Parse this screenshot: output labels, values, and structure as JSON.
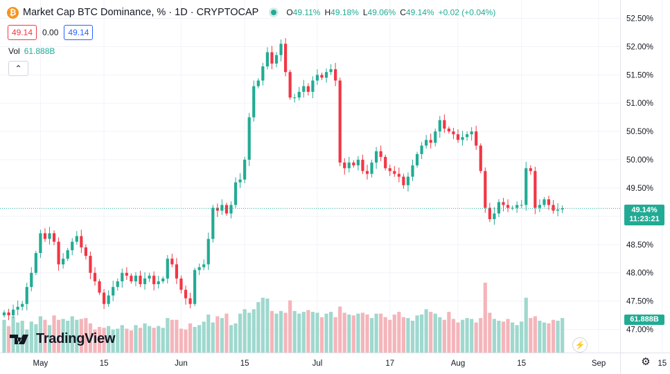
{
  "header": {
    "title": "Market Cap BTC Dominance, % · 1D · CRYPTOCAP",
    "btc_glyph": "₿",
    "ohlc": {
      "o_key": "O",
      "o": "49.11%",
      "h_key": "H",
      "h": "49.18%",
      "l_key": "L",
      "l": "49.06%",
      "c_key": "C",
      "c": "49.14%",
      "change": "+0.02 (+0.04%)"
    }
  },
  "quote": {
    "sell": "49.14",
    "spread": "0.00",
    "buy": "49.14"
  },
  "volume_legend": {
    "label": "Vol",
    "value": "61.888B"
  },
  "collapse_glyph": "⌃",
  "brand": {
    "name": "TradingView"
  },
  "price_label": {
    "price": "49.14%",
    "countdown": "11:23:21"
  },
  "volume_label": "61.888B",
  "colors": {
    "up": "#22ab94",
    "down": "#f23645",
    "up_vol": "#9fd8ce",
    "down_vol": "#f4b5ba",
    "grid": "#f0f3fa",
    "text": "#131722"
  },
  "chart_data": {
    "type": "candlestick",
    "symbol": "CRYPTOCAP:BTC.D",
    "interval": "1D",
    "ylim": [
      46.9,
      52.6
    ],
    "y_ticks": [
      "52.50%",
      "52.00%",
      "51.50%",
      "51.00%",
      "50.50%",
      "50.00%",
      "49.50%",
      "49.00%",
      "48.50%",
      "48.00%",
      "47.50%",
      "47.00%"
    ],
    "y_tick_values": [
      52.5,
      52.0,
      51.5,
      51.0,
      50.5,
      50.0,
      49.5,
      49.0,
      48.5,
      48.0,
      47.5,
      47.0
    ],
    "x_ticks": [
      "May",
      "15",
      "Jun",
      "15",
      "Jul",
      "17",
      "Aug",
      "15",
      "Sep",
      "15"
    ],
    "x_tick_day_index": [
      8,
      22,
      39,
      53,
      69,
      85,
      100,
      114,
      131,
      145
    ],
    "closes": [
      47.3,
      47.25,
      47.35,
      47.4,
      47.45,
      47.75,
      48.0,
      48.35,
      48.7,
      48.6,
      48.7,
      48.55,
      48.15,
      48.25,
      48.4,
      48.55,
      48.65,
      48.45,
      48.3,
      48.0,
      47.85,
      47.65,
      47.45,
      47.6,
      47.75,
      47.85,
      48.0,
      47.95,
      47.85,
      47.95,
      47.8,
      47.9,
      47.95,
      47.8,
      47.85,
      47.9,
      48.25,
      48.15,
      47.9,
      47.7,
      47.55,
      47.45,
      48.05,
      48.1,
      48.15,
      48.6,
      49.15,
      49.1,
      49.2,
      49.05,
      49.2,
      49.6,
      49.65,
      50.0,
      50.75,
      51.3,
      51.4,
      51.65,
      51.9,
      51.7,
      51.85,
      52.05,
      51.55,
      51.1,
      51.1,
      51.2,
      51.3,
      51.2,
      51.4,
      51.5,
      51.45,
      51.55,
      51.6,
      51.4,
      49.95,
      49.85,
      49.95,
      49.9,
      50.0,
      49.8,
      49.75,
      49.95,
      50.15,
      50.05,
      49.85,
      49.8,
      49.75,
      49.7,
      49.55,
      49.7,
      49.9,
      50.1,
      50.25,
      50.35,
      50.3,
      50.5,
      50.7,
      50.55,
      50.5,
      50.45,
      50.35,
      50.4,
      50.45,
      50.5,
      50.25,
      49.8,
      49.15,
      48.95,
      49.05,
      49.25,
      49.2,
      49.15,
      49.15,
      49.2,
      49.2,
      49.85,
      49.8,
      49.15,
      49.2,
      49.3,
      49.2,
      49.1,
      49.12,
      49.14
    ],
    "volumes_relative": [
      0.37,
      0.3,
      0.41,
      0.34,
      0.36,
      0.26,
      0.35,
      0.32,
      0.41,
      0.37,
      0.31,
      0.42,
      0.37,
      0.38,
      0.36,
      0.41,
      0.37,
      0.38,
      0.39,
      0.33,
      0.26,
      0.29,
      0.28,
      0.3,
      0.26,
      0.27,
      0.31,
      0.27,
      0.25,
      0.31,
      0.28,
      0.33,
      0.3,
      0.28,
      0.3,
      0.28,
      0.39,
      0.37,
      0.37,
      0.27,
      0.26,
      0.33,
      0.29,
      0.31,
      0.35,
      0.43,
      0.34,
      0.41,
      0.39,
      0.44,
      0.31,
      0.33,
      0.44,
      0.49,
      0.45,
      0.49,
      0.57,
      0.62,
      0.61,
      0.47,
      0.44,
      0.47,
      0.45,
      0.59,
      0.47,
      0.44,
      0.46,
      0.48,
      0.46,
      0.45,
      0.4,
      0.44,
      0.46,
      0.4,
      0.52,
      0.45,
      0.43,
      0.42,
      0.44,
      0.45,
      0.43,
      0.39,
      0.44,
      0.44,
      0.4,
      0.37,
      0.43,
      0.46,
      0.4,
      0.39,
      0.36,
      0.42,
      0.43,
      0.49,
      0.46,
      0.44,
      0.4,
      0.37,
      0.46,
      0.38,
      0.34,
      0.37,
      0.39,
      0.38,
      0.34,
      0.39,
      0.79,
      0.45,
      0.38,
      0.36,
      0.35,
      0.38,
      0.34,
      0.31,
      0.35,
      0.62,
      0.39,
      0.41,
      0.36,
      0.34,
      0.33,
      0.37,
      0.36,
      0.39
    ]
  }
}
